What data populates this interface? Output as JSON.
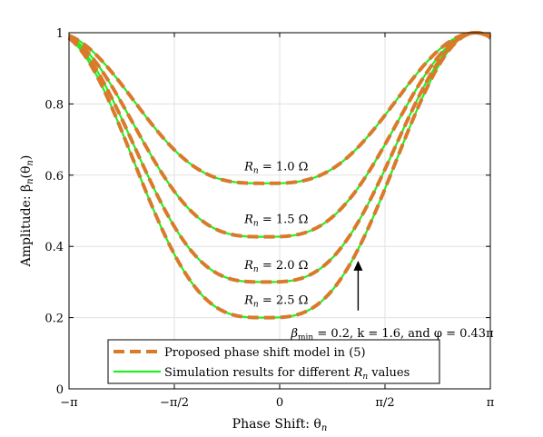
{
  "chart_data": {
    "type": "line",
    "title": "",
    "xlabel": "Phase Shift: θ",
    "xlabel_sub": "n",
    "ylabel": "Amplitude: β",
    "ylabel_sub": "n",
    "ylabel_arg": "(θ",
    "ylabel_arg_sub": "n",
    "ylabel_close": ")",
    "xlim": [
      -3.14159,
      3.14159
    ],
    "ylim": [
      0,
      1
    ],
    "grid": true,
    "xticks": [
      {
        "value": -3.14159,
        "label": "−π"
      },
      {
        "value": -1.5708,
        "label": "−π/2"
      },
      {
        "value": 0,
        "label": "0"
      },
      {
        "value": 1.5708,
        "label": "π/2"
      },
      {
        "value": 3.14159,
        "label": "π"
      }
    ],
    "yticks": [
      {
        "value": 0,
        "label": "0"
      },
      {
        "value": 0.2,
        "label": "0.2"
      },
      {
        "value": 0.4,
        "label": "0.4"
      },
      {
        "value": 0.6,
        "label": "0.6"
      },
      {
        "value": 0.8,
        "label": "0.8"
      },
      {
        "value": 1,
        "label": "1"
      }
    ],
    "model": {
      "k": 1.6,
      "phi": 1.35088
    },
    "series": [
      {
        "name": "Proposed phase shift model in (5)",
        "style": "dashed",
        "color": "#d97a2b",
        "beta_min_values": [
          0.577,
          0.427,
          0.3,
          0.2
        ]
      },
      {
        "name": "Simulation results for different R values",
        "style": "solid",
        "color": "#22ee22",
        "beta_min_values": [
          0.577,
          0.427,
          0.3,
          0.2
        ]
      }
    ],
    "curve_labels": [
      {
        "prefix": "R",
        "sub": "n",
        "text": " = 1.0 Ω",
        "x": -0.05,
        "y": 0.613
      },
      {
        "prefix": "R",
        "sub": "n",
        "text": " = 1.5 Ω",
        "x": -0.05,
        "y": 0.465
      },
      {
        "prefix": "R",
        "sub": "n",
        "text": " = 2.0 Ω",
        "x": -0.05,
        "y": 0.337
      },
      {
        "prefix": "R",
        "sub": "n",
        "text": " = 2.5 Ω",
        "x": -0.05,
        "y": 0.238
      }
    ],
    "annotation": {
      "text": "β",
      "sub": "min",
      "rest": " = 0.2, k = 1.6, and φ = 0.43π",
      "x": 1.68,
      "y": 0.145,
      "arrow_from": [
        1.17,
        0.22
      ],
      "arrow_to": [
        1.17,
        0.36
      ]
    },
    "legend": {
      "placement": "bottom-center",
      "entries": [
        {
          "label": "Proposed phase shift model in (5)",
          "style": "dashed",
          "color": "#d97a2b"
        },
        {
          "label": "Simulation results for different ",
          "label_var": "R",
          "label_sub": "n",
          "label_tail": " values",
          "style": "solid",
          "color": "#22ee22"
        }
      ]
    }
  }
}
